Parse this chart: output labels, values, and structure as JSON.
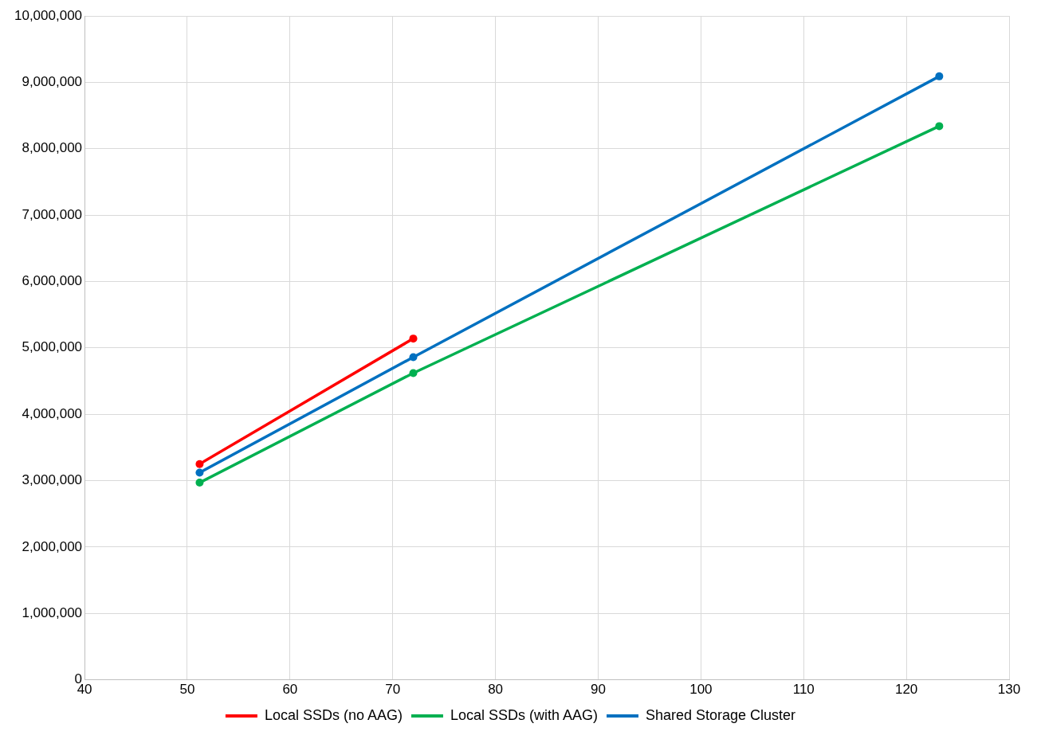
{
  "chart_data": {
    "type": "line",
    "series": [
      {
        "name": "Local SSDs (no AAG)",
        "color": "#ff0000",
        "x": [
          51.2,
          72
        ],
        "values": [
          3250000,
          5140000
        ]
      },
      {
        "name": "Local SSDs (with AAG)",
        "color": "#00b050",
        "x": [
          51.2,
          72,
          123.2
        ],
        "values": [
          2970000,
          4620000,
          8340000
        ]
      },
      {
        "name": "Shared Storage Cluster",
        "color": "#0070c0",
        "x": [
          51.2,
          72,
          123.2
        ],
        "values": [
          3120000,
          4860000,
          9090000
        ]
      }
    ],
    "xlim": [
      40,
      130
    ],
    "xticks": [
      40,
      50,
      60,
      70,
      80,
      90,
      100,
      110,
      120,
      130
    ],
    "ylim": [
      0,
      10000000
    ],
    "yticks": [
      0,
      {
        "value": 1000000,
        "label": "1,000,000"
      },
      {
        "value": 2000000,
        "label": "2,000,000"
      },
      {
        "value": 3000000,
        "label": "3,000,000"
      },
      {
        "value": 4000000,
        "label": "4,000,000"
      },
      {
        "value": 5000000,
        "label": "5,000,000"
      },
      {
        "value": 6000000,
        "label": "6,000,000"
      },
      {
        "value": 7000000,
        "label": "7,000,000"
      },
      {
        "value": 8000000,
        "label": "8,000,000"
      },
      {
        "value": 9000000,
        "label": "9,000,000"
      },
      {
        "value": 10000000,
        "label": "10,000,000"
      }
    ],
    "grid": true,
    "legend": "bottom",
    "marker": "circle",
    "line_style": "solid"
  }
}
